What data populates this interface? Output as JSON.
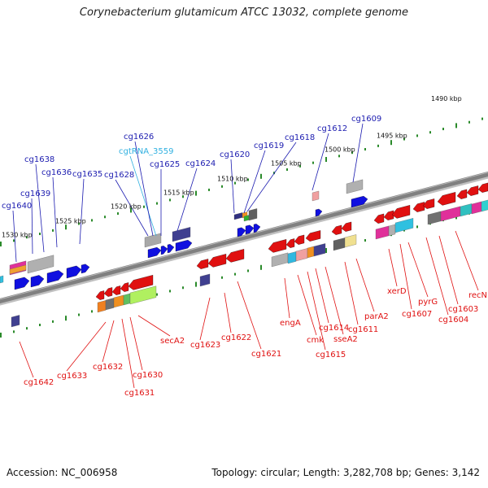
{
  "title": "Corynebacterium glutamicum ATCC 13032, complete genome",
  "accession": "Accession: NC_006958",
  "summary": "Topology: circular; Length: 3,282,708 bp; Genes: 3,142",
  "colors": {
    "forward_gene": "#1010e0",
    "reverse_gene": "#e01010",
    "rna_gene": "#30b0e0",
    "backbone": "#808080",
    "ticks": "#2a8a2a",
    "leader_forward": "#1c1cb0",
    "leader_reverse": "#e01010"
  },
  "ruler": [
    "1490 kbp",
    "1495 kbp",
    "1500 kbp",
    "1505 kbp",
    "1510 kbp",
    "1515 kbp",
    "1520 kbp",
    "1525 kbp",
    "1530 kbp"
  ],
  "forward_labels": [
    "cg1609",
    "cg1612",
    "cg1618",
    "cg1619",
    "cg1620",
    "cg1624",
    "cg1625",
    "cgtRNA_3559",
    "cg1626",
    "cg1628",
    "cg1635",
    "cg1636",
    "cg1638",
    "cg1639",
    "cg1640"
  ],
  "reverse_labels": [
    "recN",
    "cg1603",
    "cg1604",
    "pyrG",
    "cg1607",
    "xerD",
    "parA2",
    "cg1611",
    "sseA2",
    "cg1614",
    "cg1615",
    "cmk",
    "engA",
    "cg1621",
    "cg1622",
    "cg1623",
    "secA2",
    "cg1630",
    "cg1631",
    "cg1632",
    "cg1633",
    "cg1642"
  ]
}
